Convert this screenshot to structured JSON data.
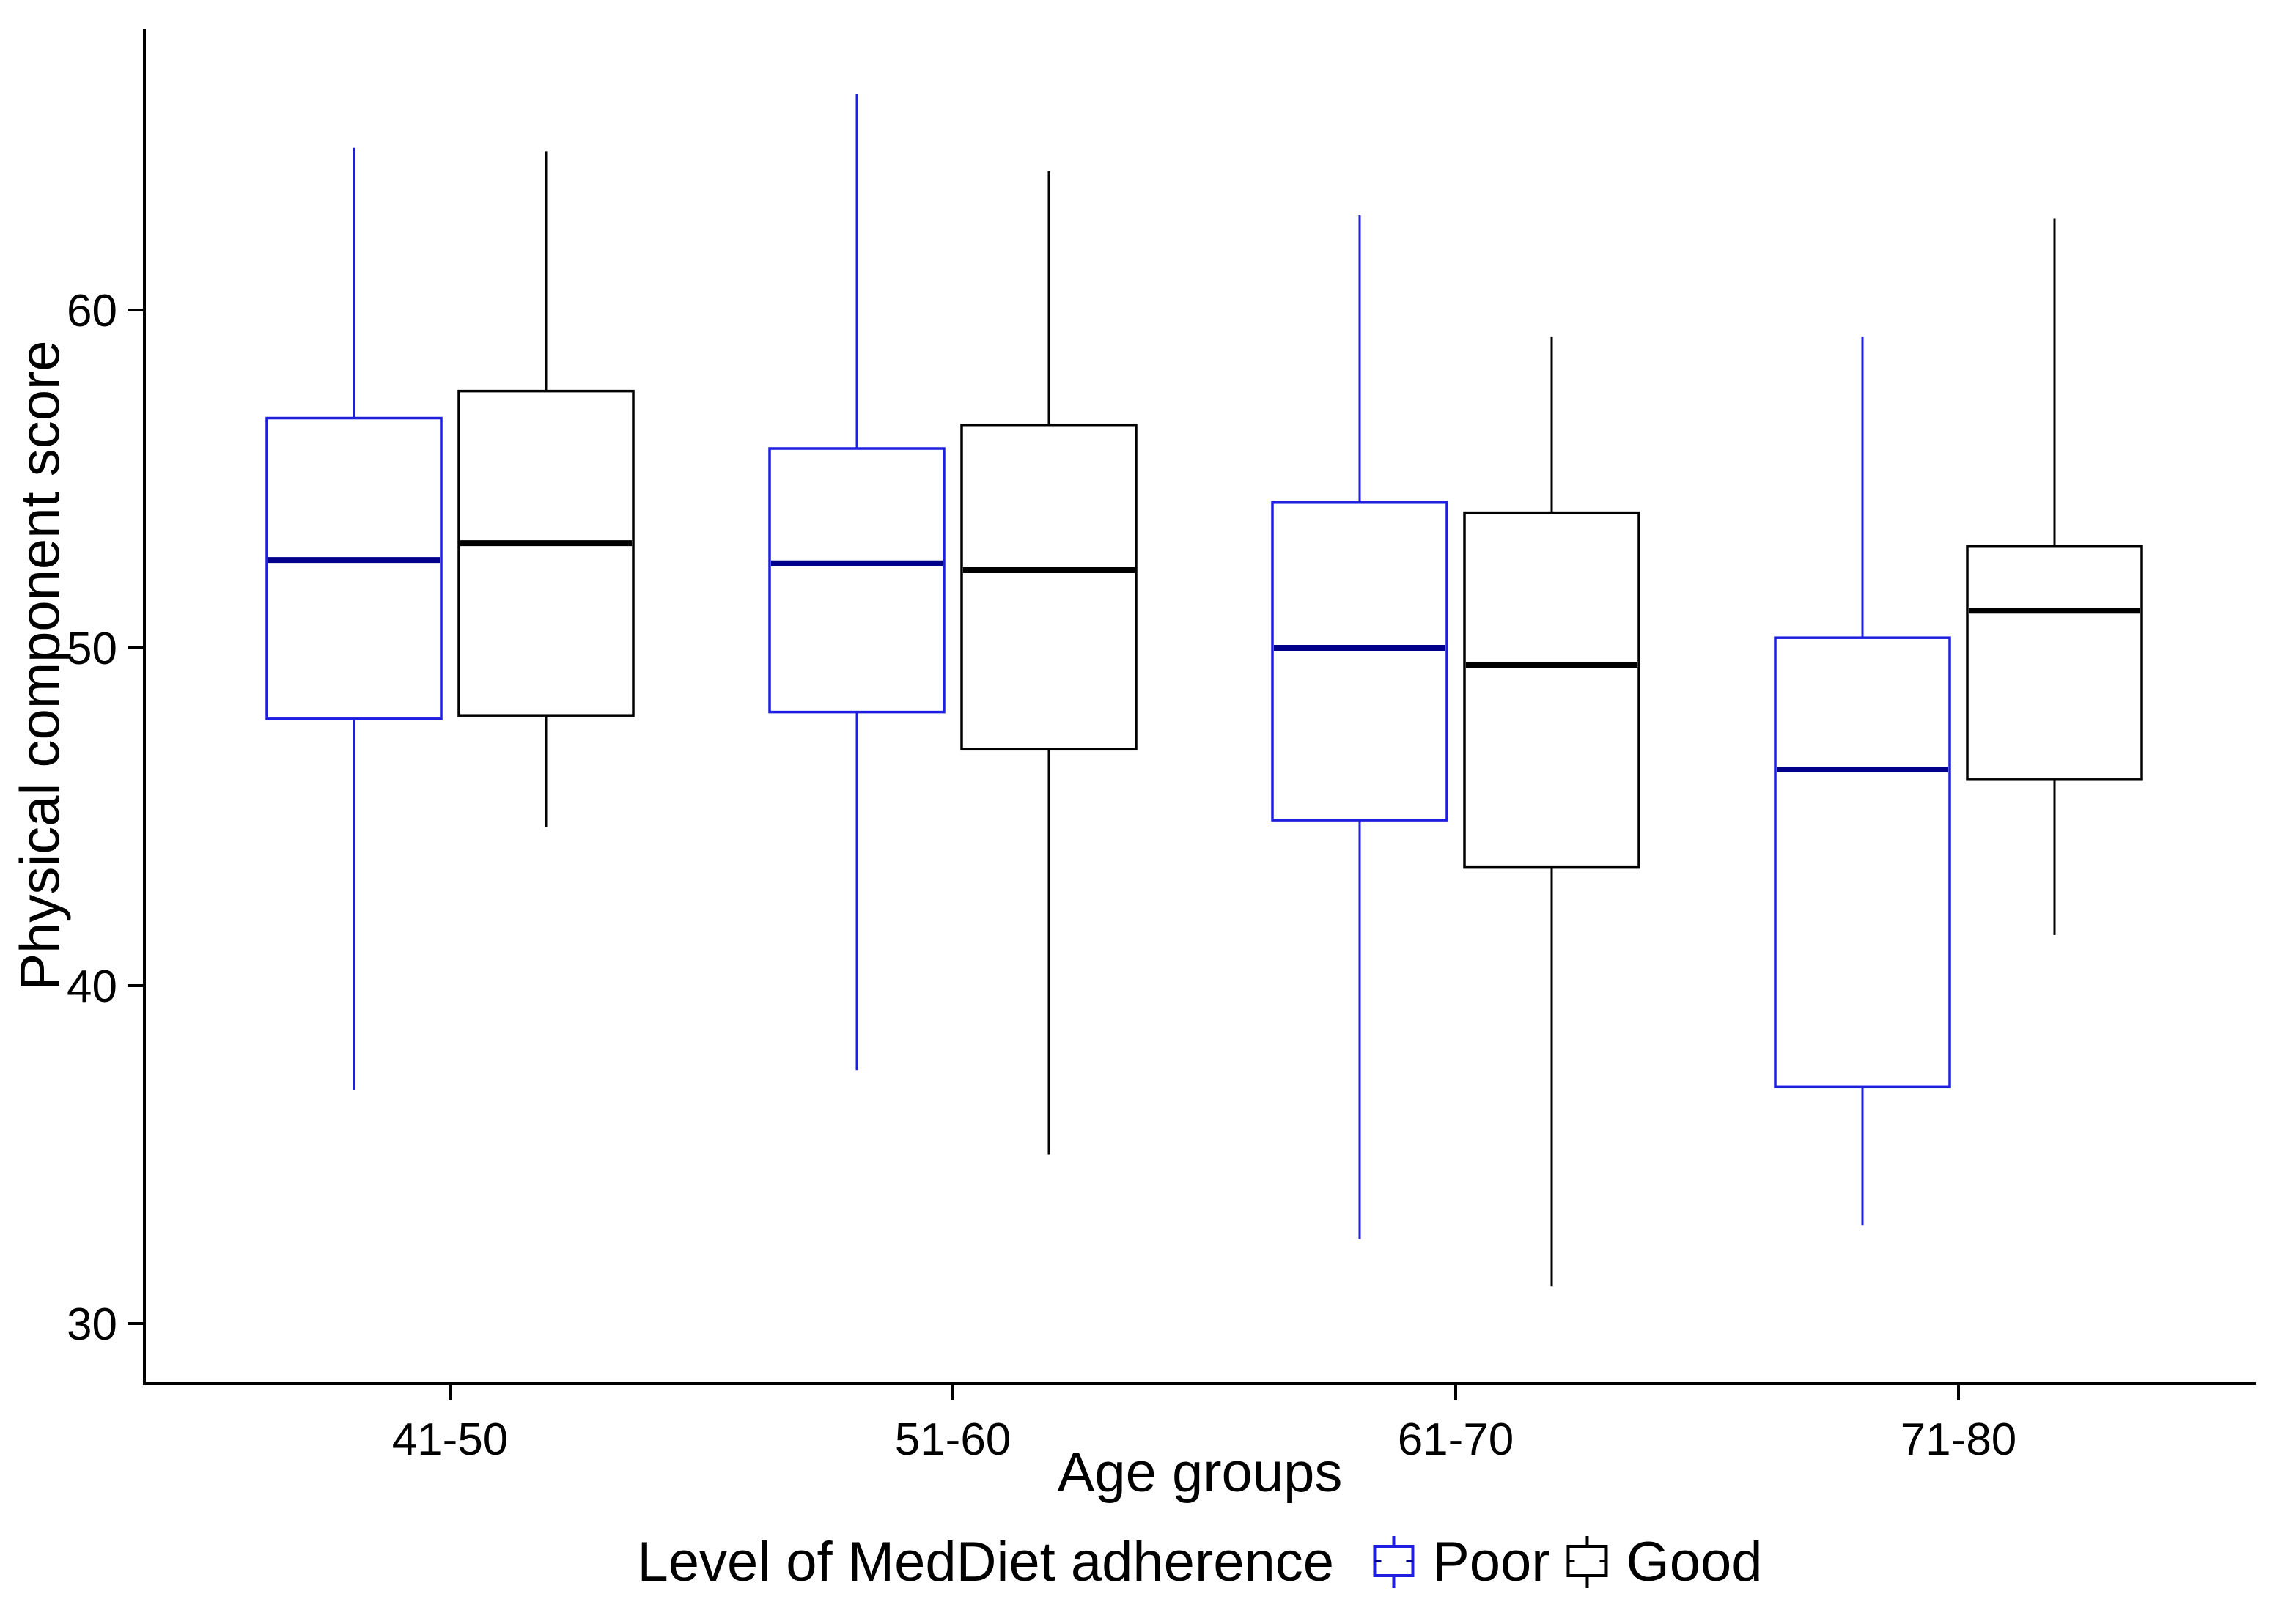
{
  "figure": {
    "background": "#ffffff",
    "axis_color": "#000000"
  },
  "chart_data": {
    "type": "boxplot",
    "title": "",
    "xlabel": "Age groups",
    "ylabel": "Physical component score",
    "categories": [
      "41-50",
      "51-60",
      "61-70",
      "71-80"
    ],
    "y_ticks": [
      30,
      40,
      50,
      60
    ],
    "y_tick_labels": [
      "30",
      "40",
      "50",
      "60"
    ],
    "ylim": [
      28.2,
      68.3
    ],
    "grid": "off",
    "legend": {
      "title": "Level of MedDiet adherence",
      "position": "bottom"
    },
    "series": [
      {
        "name": "Poor",
        "color": "#1f1fe0",
        "median_color": "#00008b",
        "boxes": [
          {
            "category": "41-50",
            "whisker_low": 36.9,
            "q1": 47.9,
            "median": 52.6,
            "q3": 56.8,
            "whisker_high": 64.8
          },
          {
            "category": "51-60",
            "whisker_low": 37.5,
            "q1": 48.1,
            "median": 52.5,
            "q3": 55.9,
            "whisker_high": 66.4
          },
          {
            "category": "61-70",
            "whisker_low": 32.5,
            "q1": 44.9,
            "median": 50.0,
            "q3": 54.3,
            "whisker_high": 62.8
          },
          {
            "category": "71-80",
            "whisker_low": 32.9,
            "q1": 37.0,
            "median": 46.4,
            "q3": 50.3,
            "whisker_high": 59.2
          }
        ]
      },
      {
        "name": "Good",
        "color": "#000000",
        "median_color": "#000000",
        "boxes": [
          {
            "category": "41-50",
            "whisker_low": 44.7,
            "q1": 48.0,
            "median": 53.1,
            "q3": 57.6,
            "whisker_high": 64.7
          },
          {
            "category": "51-60",
            "whisker_low": 35.0,
            "q1": 47.0,
            "median": 52.3,
            "q3": 56.6,
            "whisker_high": 64.1
          },
          {
            "category": "61-70",
            "whisker_low": 31.1,
            "q1": 43.5,
            "median": 49.5,
            "q3": 54.0,
            "whisker_high": 59.2
          },
          {
            "category": "71-80",
            "whisker_low": 41.5,
            "q1": 46.1,
            "median": 51.1,
            "q3": 53.0,
            "whisker_high": 62.7
          }
        ]
      }
    ]
  }
}
